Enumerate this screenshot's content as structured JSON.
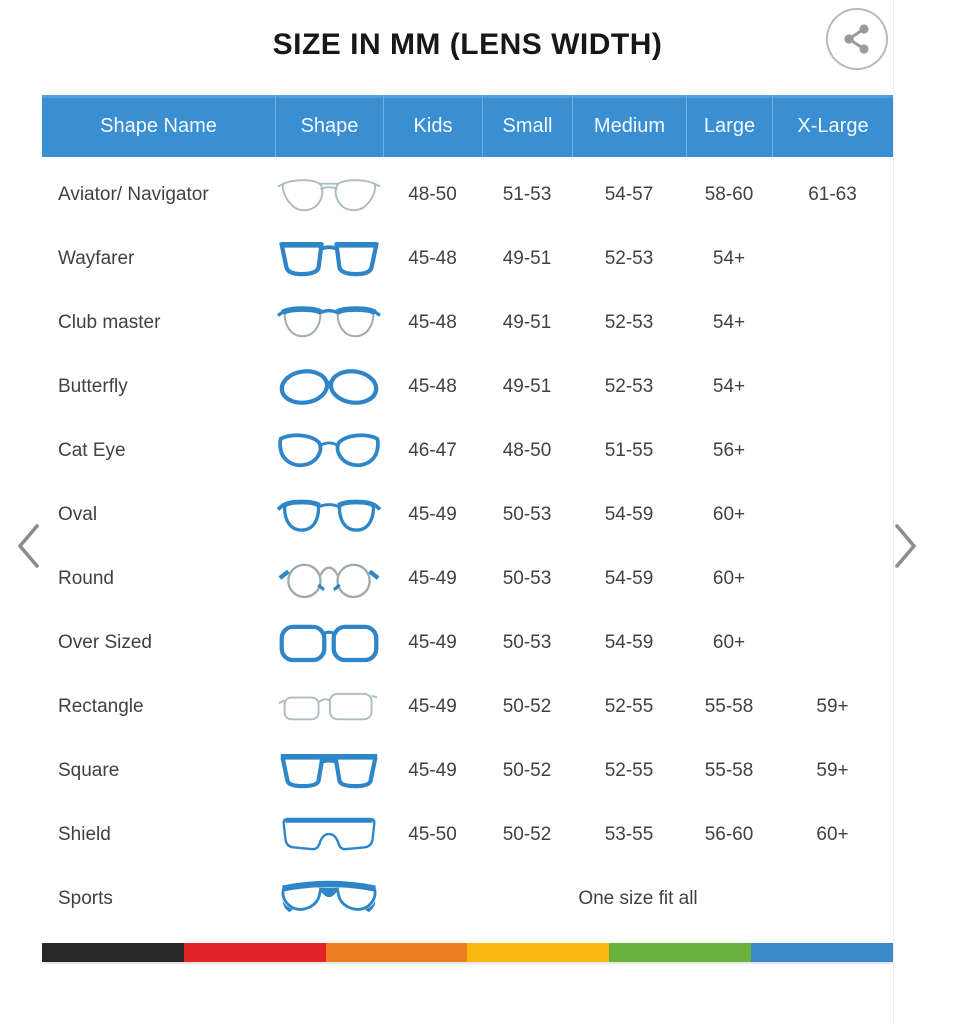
{
  "page": {
    "title": "SIZE IN MM (LENS WIDTH)"
  },
  "colors": {
    "header_bg": "#3a8ed2",
    "icon_blue": "#2e86c9",
    "icon_light": "#aabdc2",
    "icon_gray": "#9fabad"
  },
  "table": {
    "columns": [
      "Shape Name",
      "Shape",
      "Kids",
      "Small",
      "Medium",
      "Large",
      "X-Large"
    ],
    "rows": [
      {
        "name": "Aviator/ Navigator",
        "icon": "aviator-glasses-icon",
        "sizes": [
          "48-50",
          "51-53",
          "54-57",
          "58-60",
          "61-63"
        ]
      },
      {
        "name": "Wayfarer",
        "icon": "wayfarer-glasses-icon",
        "sizes": [
          "45-48",
          "49-51",
          "52-53",
          "54+",
          ""
        ]
      },
      {
        "name": "Club master",
        "icon": "clubmaster-glasses-icon",
        "sizes": [
          "45-48",
          "49-51",
          "52-53",
          "54+",
          ""
        ]
      },
      {
        "name": "Butterfly",
        "icon": "butterfly-glasses-icon",
        "sizes": [
          "45-48",
          "49-51",
          "52-53",
          "54+",
          ""
        ]
      },
      {
        "name": "Cat Eye",
        "icon": "cateye-glasses-icon",
        "sizes": [
          "46-47",
          "48-50",
          "51-55",
          "56+",
          ""
        ]
      },
      {
        "name": "Oval",
        "icon": "oval-glasses-icon",
        "sizes": [
          "45-49",
          "50-53",
          "54-59",
          "60+",
          ""
        ]
      },
      {
        "name": "Round",
        "icon": "round-glasses-icon",
        "sizes": [
          "45-49",
          "50-53",
          "54-59",
          "60+",
          ""
        ]
      },
      {
        "name": "Over Sized",
        "icon": "oversized-glasses-icon",
        "sizes": [
          "45-49",
          "50-53",
          "54-59",
          "60+",
          ""
        ]
      },
      {
        "name": "Rectangle",
        "icon": "rectangle-glasses-icon",
        "sizes": [
          "45-49",
          "50-52",
          "52-55",
          "55-58",
          "59+"
        ]
      },
      {
        "name": "Square",
        "icon": "square-glasses-icon",
        "sizes": [
          "45-49",
          "50-52",
          "52-55",
          "55-58",
          "59+"
        ]
      },
      {
        "name": "Shield",
        "icon": "shield-glasses-icon",
        "sizes": [
          "45-50",
          "50-52",
          "53-55",
          "56-60",
          "60+"
        ]
      },
      {
        "name": "Sports",
        "icon": "sports-glasses-icon",
        "one_size_text": "One size fit all"
      }
    ]
  },
  "footer": {
    "stripe_colors": [
      "#282828",
      "#e2242a",
      "#ee7e22",
      "#fdb713",
      "#6ab23e",
      "#3a8acb"
    ]
  }
}
